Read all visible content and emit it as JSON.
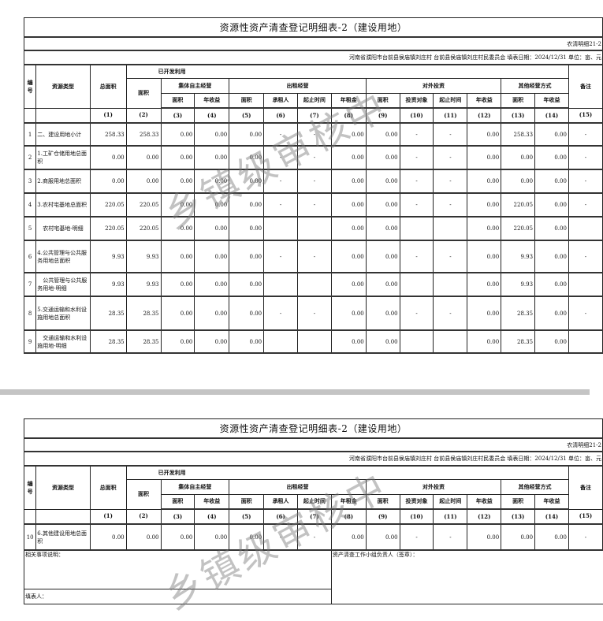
{
  "document": {
    "title": "资源性资产清查登记明细表-2（建设用地）",
    "form_code": "农清明细21-2",
    "location_line": "河南省濮阳市台前县侯庙镇刘庄村  台前县侯庙镇刘庄村民委员会  填表日期：2024/12/31  单位：亩、元",
    "watermark": "乡镇级审核中"
  },
  "headers": {
    "no": "编号",
    "type": "资源类型",
    "total_area": "总面积",
    "developed": "已开发利用",
    "area": "面积",
    "self_run": "集体自主经营",
    "lease": "出租经营",
    "invest": "对外投资",
    "other": "其他经营方式",
    "remark": "备注",
    "sub_area": "面积",
    "annual_income": "年收益",
    "lessee": "承租人",
    "period": "起止时间",
    "annual_rent": "年租金",
    "invest_target": "投资对象",
    "col_nums": [
      "(1)",
      "(2)",
      "(3)",
      "(4)",
      "(5)",
      "(6)",
      "(7)",
      "(8)",
      "(9)",
      "(10)",
      "(11)",
      "(12)",
      "(13)",
      "(14)",
      "(15)"
    ]
  },
  "rows_page1": [
    {
      "no": "1",
      "type": "二、建设用地小计",
      "v": [
        "258.33",
        "258.33",
        "0.00",
        "0.00",
        "0.00",
        "-",
        "-",
        "0.00",
        "0.00",
        "-",
        "-",
        "0.00",
        "258.33",
        "0.00",
        "-"
      ]
    },
    {
      "no": "2",
      "type": "1.工矿仓储用地总面积",
      "v": [
        "0.00",
        "0.00",
        "0.00",
        "0.00",
        "0.00",
        "-",
        "-",
        "0.00",
        "0.00",
        "-",
        "-",
        "0.00",
        "0.00",
        "0.00",
        "-"
      ]
    },
    {
      "no": "3",
      "type": "2.商服用地总面积",
      "v": [
        "0.00",
        "0.00",
        "0.00",
        "0.00",
        "0.00",
        "-",
        "-",
        "0.00",
        "0.00",
        "-",
        "-",
        "0.00",
        "0.00",
        "0.00",
        "-"
      ]
    },
    {
      "no": "4",
      "type": "3.农村宅基地总面积",
      "v": [
        "220.05",
        "220.05",
        "0.00",
        "0.00",
        "0.00",
        "-",
        "-",
        "0.00",
        "0.00",
        "-",
        "-",
        "0.00",
        "220.05",
        "0.00",
        "-"
      ]
    },
    {
      "no": "5",
      "type": "　农村宅基地-明细",
      "v": [
        "220.05",
        "220.05",
        "0.00",
        "0.00",
        "0.00",
        "",
        "",
        "0.00",
        "0.00",
        "",
        "",
        "0.00",
        "220.05",
        "0.00",
        ""
      ]
    },
    {
      "no": "6",
      "type": "4.公共管理与公共服务用地总面积",
      "v": [
        "9.93",
        "9.93",
        "0.00",
        "0.00",
        "0.00",
        "-",
        "-",
        "0.00",
        "0.00",
        "-",
        "-",
        "0.00",
        "9.93",
        "0.00",
        "-"
      ]
    },
    {
      "no": "7",
      "type": "　公共管理与公共服务用地-明细",
      "v": [
        "9.93",
        "9.93",
        "0.00",
        "0.00",
        "0.00",
        "",
        "",
        "0.00",
        "0.00",
        "",
        "",
        "0.00",
        "9.93",
        "0.00",
        ""
      ]
    },
    {
      "no": "8",
      "type": "5.交通运输和水利设施用地总面积",
      "v": [
        "28.35",
        "28.35",
        "0.00",
        "0.00",
        "0.00",
        "-",
        "-",
        "0.00",
        "0.00",
        "-",
        "-",
        "0.00",
        "28.35",
        "0.00",
        "-"
      ]
    },
    {
      "no": "9",
      "type": "　交通运输和水利设施用地-明细",
      "v": [
        "28.35",
        "28.35",
        "0.00",
        "0.00",
        "0.00",
        "",
        "",
        "0.00",
        "0.00",
        "",
        "",
        "0.00",
        "28.35",
        "0.00",
        ""
      ]
    }
  ],
  "rows_page2": [
    {
      "no": "10",
      "type": "6.其他建设用地总面积",
      "v": [
        "0.00",
        "0.00",
        "0.00",
        "0.00",
        "0.00",
        "-",
        "-",
        "0.00",
        "0.00",
        "-",
        "-",
        "0.00",
        "0.00",
        "0.00",
        "-"
      ]
    }
  ],
  "footer": {
    "notes_label": "相关事项说明：",
    "signer_label": "资产清查工作小组负责人（签章）：",
    "filler_label": "填表人："
  }
}
